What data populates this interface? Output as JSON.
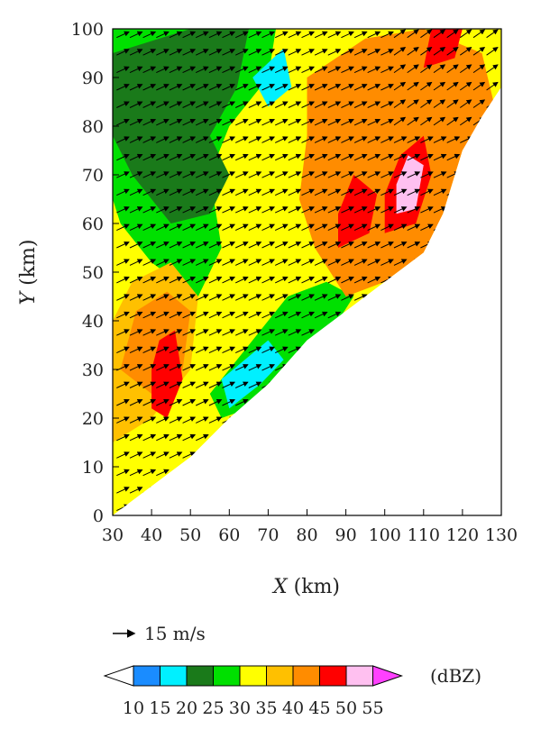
{
  "chart_data": {
    "type": "heatmap",
    "title": "",
    "xlabel_var": "X",
    "xlabel_unit": " (km)",
    "ylabel_var": "Y",
    "ylabel_unit": " (km)",
    "xlim": [
      30,
      130
    ],
    "ylim": [
      0,
      100
    ],
    "x_ticks": [
      "30",
      "40",
      "50",
      "60",
      "70",
      "80",
      "90",
      "100",
      "110",
      "120",
      "130"
    ],
    "y_ticks": [
      "0",
      "10",
      "20",
      "30",
      "40",
      "50",
      "60",
      "70",
      "80",
      "90",
      "100"
    ],
    "grid": false,
    "vector_reference": {
      "label": "15 m/s",
      "speed": 15
    },
    "wind_direction_summary": "mostly toward east-northeast, ~15 m/s",
    "colorbar": {
      "unit": "(dBZ)",
      "levels": [
        "10",
        "15",
        "20",
        "25",
        "30",
        "35",
        "40",
        "45",
        "50",
        "55"
      ],
      "colors": [
        "#ffffff",
        "#1a8cff",
        "#00f0ff",
        "#1a7a1a",
        "#00e000",
        "#ffff00",
        "#ffc000",
        "#ff8c00",
        "#ff0000",
        "#ffc0f0",
        "#ff40ff"
      ]
    },
    "coast_boundary": [
      [
        30,
        0
      ],
      [
        50,
        12
      ],
      [
        60,
        20
      ],
      [
        70,
        27
      ],
      [
        80,
        36
      ],
      [
        90,
        42
      ],
      [
        100,
        48
      ],
      [
        110,
        54
      ],
      [
        115,
        62
      ],
      [
        120,
        75
      ],
      [
        125,
        82
      ],
      [
        130,
        88
      ],
      [
        130,
        0
      ]
    ],
    "reflectivity_regions": [
      {
        "name": "background-yellow",
        "dbz": 30,
        "points": [
          [
            30,
            0
          ],
          [
            50,
            12
          ],
          [
            60,
            20
          ],
          [
            70,
            27
          ],
          [
            80,
            36
          ],
          [
            90,
            42
          ],
          [
            100,
            48
          ],
          [
            110,
            54
          ],
          [
            115,
            62
          ],
          [
            120,
            75
          ],
          [
            125,
            82
          ],
          [
            130,
            88
          ],
          [
            130,
            100
          ],
          [
            30,
            100
          ]
        ]
      },
      {
        "name": "nw-green",
        "dbz": 25,
        "points": [
          [
            30,
            100
          ],
          [
            72,
            100
          ],
          [
            70,
            90
          ],
          [
            60,
            80
          ],
          [
            55,
            70
          ],
          [
            58,
            55
          ],
          [
            52,
            45
          ],
          [
            40,
            52
          ],
          [
            32,
            60
          ],
          [
            30,
            65
          ]
        ]
      },
      {
        "name": "nw-darkgreen",
        "dbz": 20,
        "points": [
          [
            30,
            95
          ],
          [
            50,
            100
          ],
          [
            65,
            100
          ],
          [
            62,
            88
          ],
          [
            55,
            78
          ],
          [
            60,
            70
          ],
          [
            55,
            62
          ],
          [
            45,
            60
          ],
          [
            35,
            70
          ],
          [
            30,
            78
          ]
        ]
      },
      {
        "name": "coastal-green",
        "dbz": 25,
        "points": [
          [
            58,
            20
          ],
          [
            65,
            22
          ],
          [
            72,
            28
          ],
          [
            80,
            36
          ],
          [
            88,
            40
          ],
          [
            92,
            45
          ],
          [
            85,
            48
          ],
          [
            75,
            45
          ],
          [
            68,
            38
          ],
          [
            60,
            30
          ],
          [
            55,
            25
          ]
        ]
      },
      {
        "name": "coastal-cyan",
        "dbz": 15,
        "points": [
          [
            60,
            22
          ],
          [
            68,
            27
          ],
          [
            74,
            32
          ],
          [
            70,
            36
          ],
          [
            64,
            32
          ],
          [
            58,
            28
          ]
        ]
      },
      {
        "name": "orange-east",
        "dbz": 40,
        "points": [
          [
            80,
            90
          ],
          [
            95,
            98
          ],
          [
            110,
            100
          ],
          [
            125,
            95
          ],
          [
            128,
            85
          ],
          [
            120,
            75
          ],
          [
            115,
            62
          ],
          [
            110,
            54
          ],
          [
            100,
            48
          ],
          [
            90,
            45
          ],
          [
            82,
            55
          ],
          [
            78,
            65
          ],
          [
            80,
            78
          ]
        ]
      },
      {
        "name": "light-orange-sw",
        "dbz": 35,
        "points": [
          [
            30,
            15
          ],
          [
            40,
            20
          ],
          [
            50,
            30
          ],
          [
            52,
            45
          ],
          [
            45,
            52
          ],
          [
            35,
            48
          ],
          [
            30,
            40
          ]
        ]
      },
      {
        "name": "orange-sw",
        "dbz": 40,
        "points": [
          [
            32,
            30
          ],
          [
            40,
            25
          ],
          [
            48,
            30
          ],
          [
            50,
            42
          ],
          [
            44,
            46
          ],
          [
            36,
            42
          ]
        ]
      },
      {
        "name": "red-sw",
        "dbz": 45,
        "points": [
          [
            40,
            22
          ],
          [
            44,
            20
          ],
          [
            48,
            28
          ],
          [
            46,
            38
          ],
          [
            42,
            36
          ],
          [
            40,
            30
          ]
        ]
      },
      {
        "name": "red-east",
        "dbz": 45,
        "points": [
          [
            100,
            58
          ],
          [
            108,
            60
          ],
          [
            112,
            70
          ],
          [
            110,
            78
          ],
          [
            104,
            74
          ],
          [
            100,
            66
          ]
        ]
      },
      {
        "name": "red-ne",
        "dbz": 45,
        "points": [
          [
            110,
            92
          ],
          [
            118,
            94
          ],
          [
            120,
            100
          ],
          [
            112,
            100
          ]
        ]
      },
      {
        "name": "red-mid",
        "dbz": 45,
        "points": [
          [
            88,
            55
          ],
          [
            96,
            58
          ],
          [
            98,
            66
          ],
          [
            92,
            70
          ],
          [
            88,
            62
          ]
        ]
      },
      {
        "name": "pink-core",
        "dbz": 50,
        "points": [
          [
            103,
            62
          ],
          [
            108,
            63
          ],
          [
            110,
            72
          ],
          [
            106,
            74
          ],
          [
            103,
            68
          ]
        ]
      },
      {
        "name": "cyan-n",
        "dbz": 15,
        "points": [
          [
            66,
            90
          ],
          [
            74,
            96
          ],
          [
            76,
            88
          ],
          [
            70,
            84
          ]
        ]
      }
    ]
  }
}
